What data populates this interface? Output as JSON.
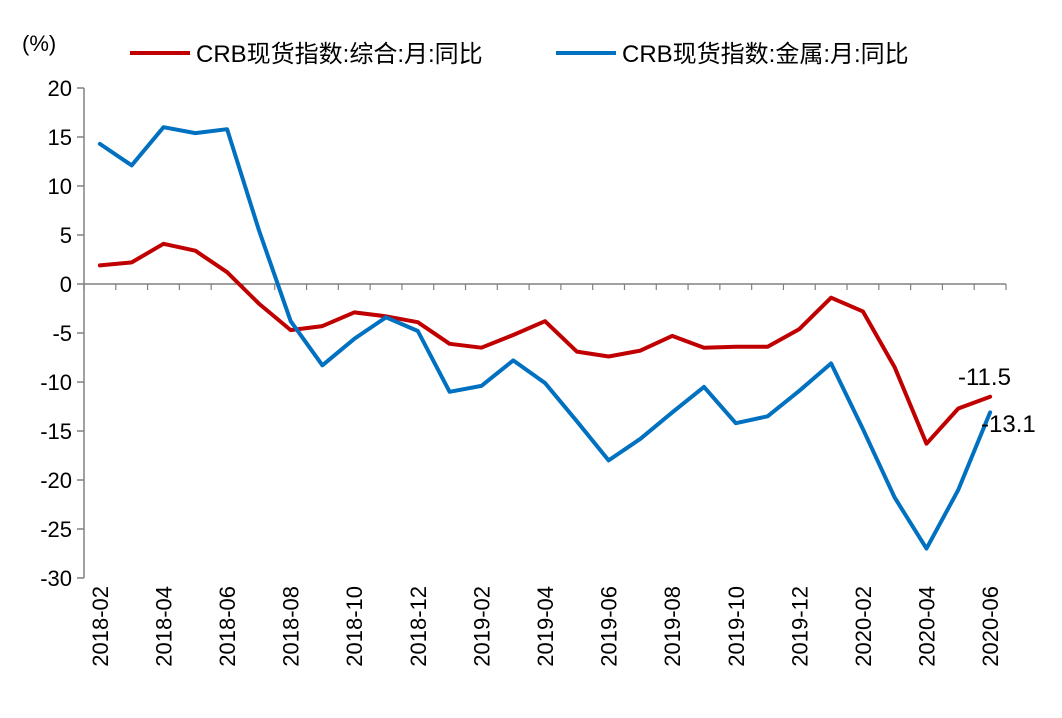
{
  "chart_data": {
    "type": "line",
    "unit_label": "(%)",
    "ylim": [
      -30,
      20
    ],
    "y_ticks": [
      20,
      15,
      10,
      5,
      0,
      -5,
      -10,
      -15,
      -20,
      -25,
      -30
    ],
    "x": [
      "2018-02",
      "2018-03",
      "2018-04",
      "2018-05",
      "2018-06",
      "2018-07",
      "2018-08",
      "2018-09",
      "2018-10",
      "2018-11",
      "2018-12",
      "2019-01",
      "2019-02",
      "2019-03",
      "2019-04",
      "2019-05",
      "2019-06",
      "2019-07",
      "2019-08",
      "2019-09",
      "2019-10",
      "2019-11",
      "2019-12",
      "2020-01",
      "2020-02",
      "2020-03",
      "2020-04",
      "2020-05",
      "2020-06"
    ],
    "x_tick_labels": [
      "2018-02",
      "2018-04",
      "2018-06",
      "2018-08",
      "2018-10",
      "2018-12",
      "2019-02",
      "2019-04",
      "2019-06",
      "2019-08",
      "2019-10",
      "2019-12",
      "2020-02",
      "2020-04",
      "2020-06"
    ],
    "grid": false,
    "legend_position": "top",
    "series": [
      {
        "name": "CRB现货指数:综合:月:同比",
        "color": "#C00000",
        "values": [
          1.9,
          2.2,
          4.1,
          3.4,
          1.2,
          -2.0,
          -4.7,
          -4.3,
          -2.9,
          -3.3,
          -3.9,
          -6.1,
          -6.5,
          -5.2,
          -3.8,
          -6.9,
          -7.4,
          -6.8,
          -5.3,
          -6.5,
          -6.4,
          -6.4,
          -4.6,
          -1.4,
          -2.8,
          -8.5,
          -16.3,
          -12.7,
          -11.5
        ],
        "end_label": "-11.5"
      },
      {
        "name": "CRB现货指数:金属:月:同比",
        "color": "#0070C0",
        "values": [
          14.3,
          12.1,
          16.0,
          15.4,
          15.8,
          5.5,
          -3.8,
          -8.3,
          -5.6,
          -3.4,
          -4.8,
          -11.0,
          -10.4,
          -7.8,
          -10.1,
          -14.0,
          -18.0,
          -15.8,
          -13.1,
          -10.5,
          -14.2,
          -13.5,
          -10.9,
          -8.1,
          -14.8,
          -21.8,
          -27.0,
          -21.0,
          -13.1
        ],
        "end_label": "-13.1"
      }
    ]
  }
}
